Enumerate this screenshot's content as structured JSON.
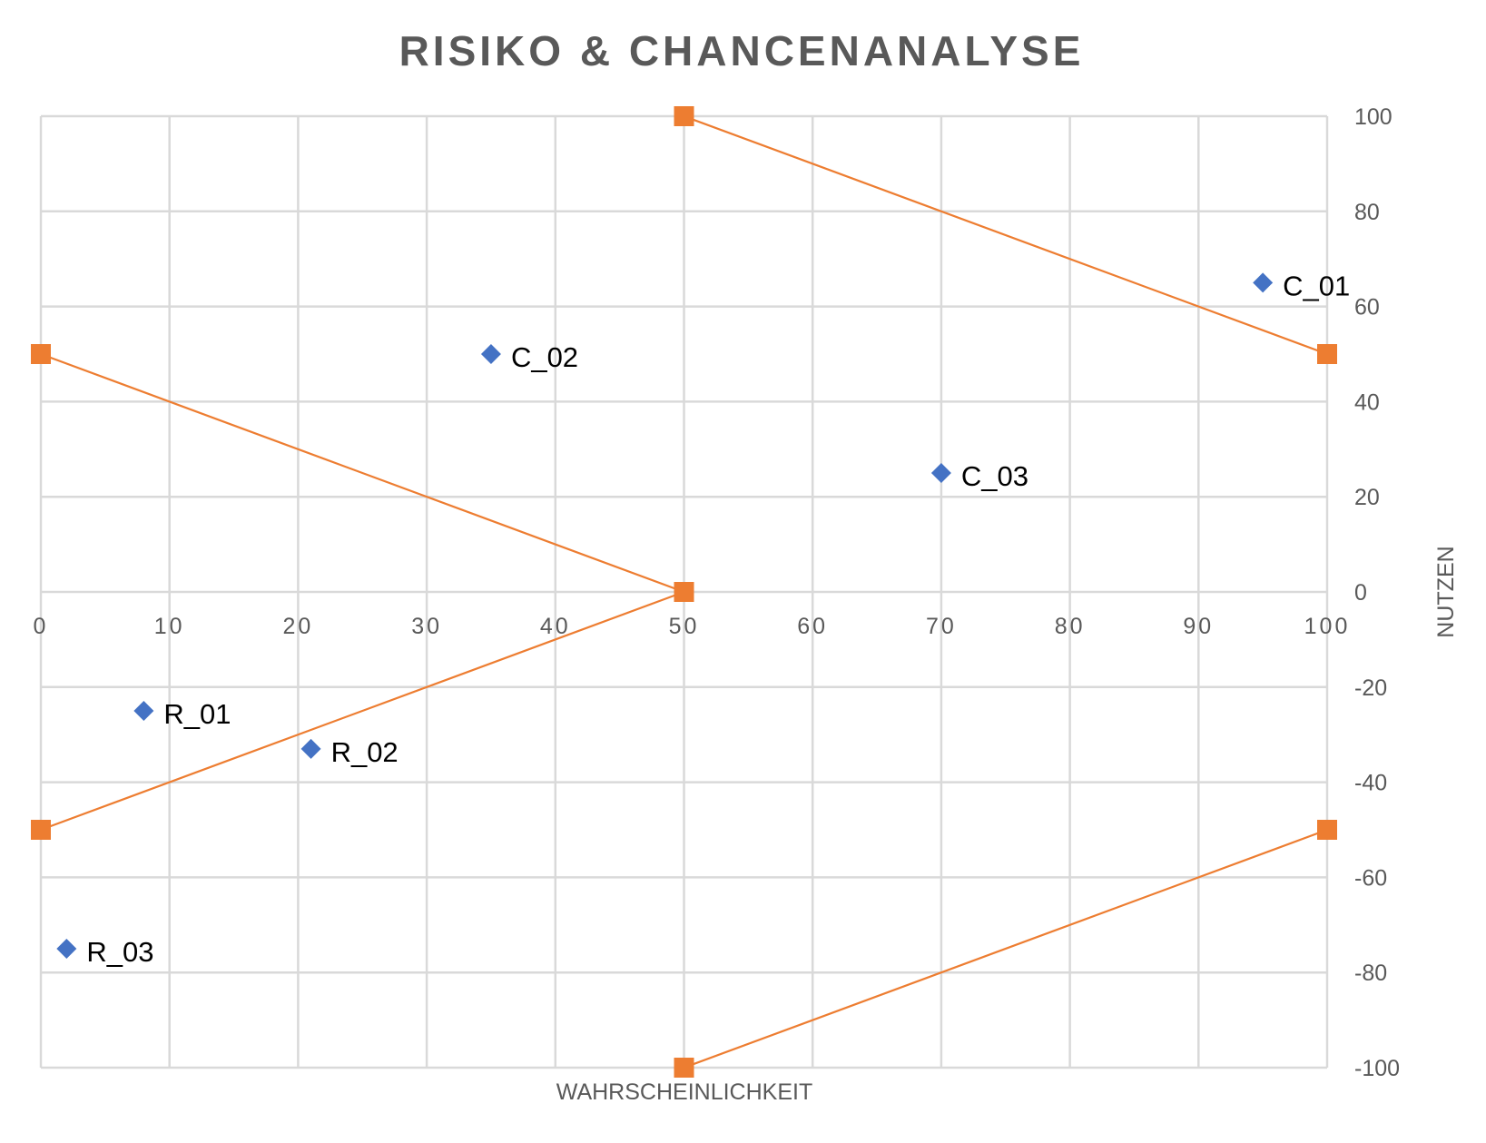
{
  "chart_data": {
    "type": "scatter",
    "title": "RISIKO & CHANCENANALYSE",
    "xlabel": "WAHRSCHEINLICHKEIT",
    "ylabel": "NUTZEN",
    "xlim": [
      0,
      100
    ],
    "ylim": [
      -100,
      100
    ],
    "x_ticks": [
      0,
      10,
      20,
      30,
      40,
      50,
      60,
      70,
      80,
      90,
      100
    ],
    "y_ticks": [
      100,
      80,
      60,
      40,
      20,
      0,
      -20,
      -40,
      -60,
      -80,
      -100
    ],
    "y_axis_side": "right",
    "grid": true,
    "series": [
      {
        "marker": "diamond",
        "color": "#4472c4",
        "show_line": false,
        "points": [
          {
            "label": "C_01",
            "x": 95,
            "y": 65
          },
          {
            "label": "C_02",
            "x": 35,
            "y": 50
          },
          {
            "label": "C_03",
            "x": 70,
            "y": 25
          },
          {
            "label": "R_01",
            "x": 8,
            "y": -25
          },
          {
            "label": "R_02",
            "x": 21,
            "y": -33
          },
          {
            "label": "R_03",
            "x": 2,
            "y": -75
          }
        ]
      },
      {
        "marker": "square",
        "color": "#ed7d31",
        "show_line": true,
        "segments": [
          [
            {
              "x": 50,
              "y": 100
            },
            {
              "x": 100,
              "y": 50
            }
          ],
          [
            {
              "x": 0,
              "y": 50
            },
            {
              "x": 50,
              "y": 0
            }
          ],
          [
            {
              "x": 50,
              "y": 0
            },
            {
              "x": 0,
              "y": -50
            }
          ],
          [
            {
              "x": 100,
              "y": -50
            },
            {
              "x": 50,
              "y": -100
            }
          ]
        ]
      }
    ]
  }
}
